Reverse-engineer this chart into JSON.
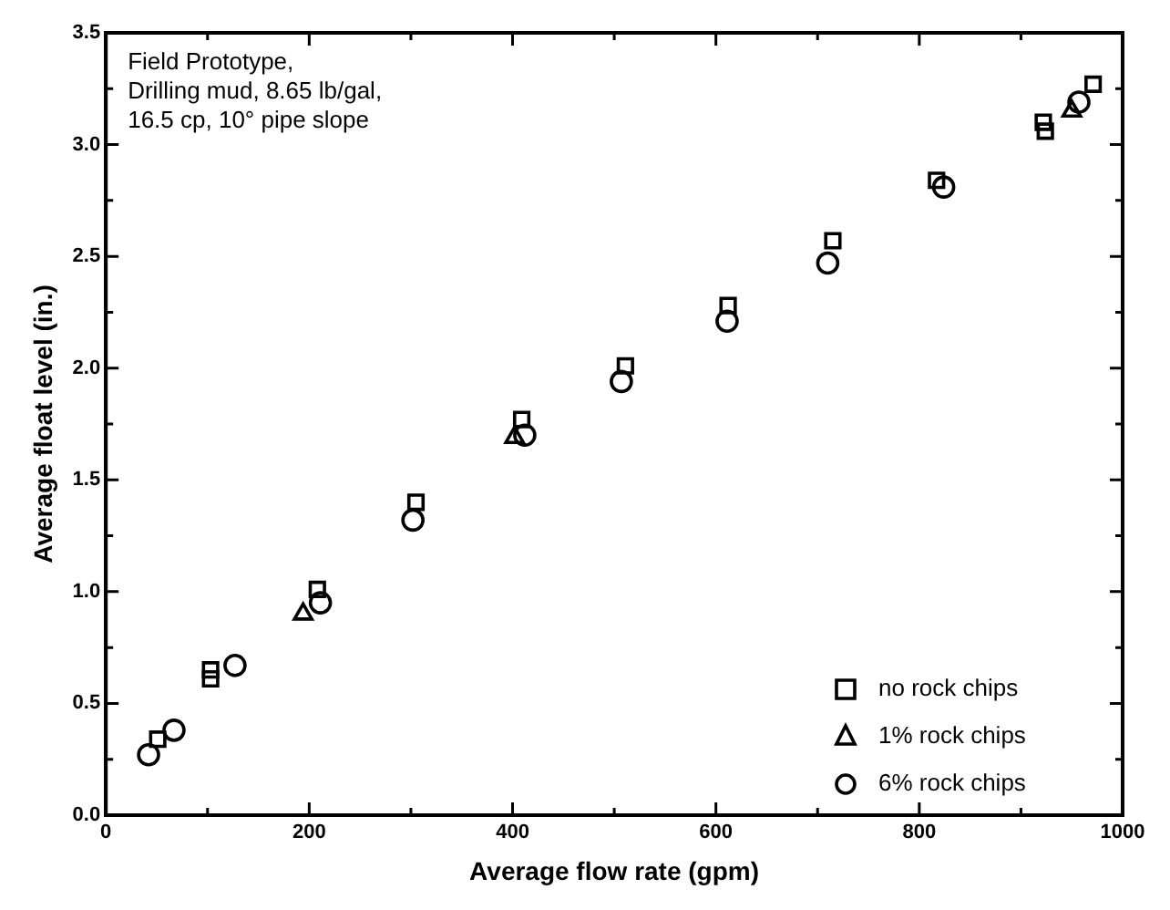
{
  "chart_data": {
    "type": "scatter",
    "xlabel": "Average flow rate (gpm)",
    "ylabel": "Average float level (in.)",
    "annotations": [
      "Field Prototype,\nDrilling mud, 8.65 lb/gal,\n16.5 cp, 10° pipe slope"
    ],
    "xlim": [
      0,
      1000
    ],
    "ylim": [
      0,
      3.5
    ],
    "xticks": [
      0,
      {
        "value": 100,
        "label": null
      },
      200,
      {
        "value": 300,
        "label": null
      },
      400,
      {
        "value": 500,
        "label": null
      },
      600,
      {
        "value": 700,
        "label": null
      },
      800,
      {
        "value": 900,
        "label": null
      },
      1000
    ],
    "yticks": [
      {
        "value": 0,
        "label": "0.0"
      },
      {
        "value": 0.25,
        "label": null
      },
      0.5,
      {
        "value": 0.75,
        "label": null
      },
      {
        "value": 1,
        "label": "1.0"
      },
      {
        "value": 1.25,
        "label": null
      },
      1.5,
      {
        "value": 1.75,
        "label": null
      },
      {
        "value": 2,
        "label": "2.0"
      },
      {
        "value": 2.25,
        "label": null
      },
      2.5,
      {
        "value": 2.75,
        "label": null
      },
      {
        "value": 3,
        "label": "3.0"
      },
      {
        "value": 3.25,
        "label": null
      },
      3.5
    ],
    "legend": "bottom right",
    "series": [
      {
        "name": "no rock chips",
        "color": "#000000",
        "marker": "square",
        "x": [
          51,
          103,
          103,
          208,
          305,
          409,
          511,
          612,
          715,
          817,
          922,
          924,
          971
        ],
        "values": [
          0.34,
          0.65,
          0.61,
          1.01,
          1.4,
          1.77,
          2.01,
          2.28,
          2.57,
          2.84,
          3.1,
          3.06,
          3.27
        ]
      },
      {
        "name": "1% rock chips",
        "color": "#000000",
        "marker": "triangle",
        "x": [
          194,
          402,
          950
        ],
        "values": [
          0.9,
          1.69,
          3.15
        ]
      },
      {
        "name": "6% rock chips",
        "color": "#000000",
        "marker": "circle",
        "x": [
          42,
          67,
          127,
          211,
          302,
          412,
          507,
          611,
          710,
          824,
          957
        ],
        "values": [
          0.27,
          0.38,
          0.67,
          0.95,
          1.32,
          1.7,
          1.94,
          2.21,
          2.47,
          2.81,
          3.19
        ]
      }
    ]
  }
}
